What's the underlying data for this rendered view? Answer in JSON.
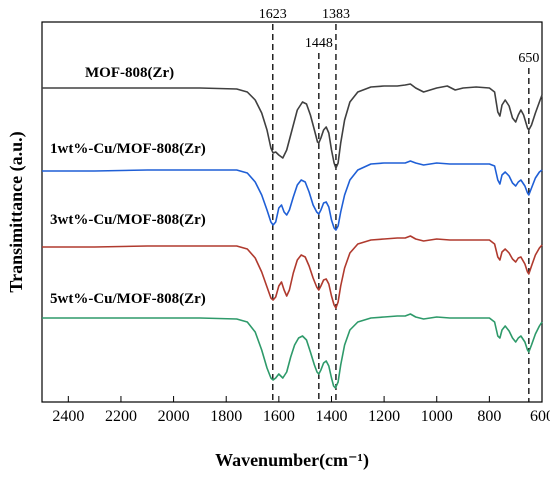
{
  "chart_data": {
    "type": "line",
    "xlabel": "Wavenumber(cm⁻¹)",
    "ylabel": "Transimittance (a.u.)",
    "xlim": [
      2500,
      600
    ],
    "x_reversed": true,
    "xticks": [
      2400,
      2200,
      2000,
      1800,
      1600,
      1400,
      1200,
      1000,
      800,
      600
    ],
    "yticks": "none",
    "grid": false,
    "legend": "none",
    "peak_markers": [
      1623,
      1448,
      1383,
      650
    ],
    "peak_labels": [
      "1623",
      "1448",
      "1383",
      "650"
    ],
    "series": [
      {
        "name": "MOF-808(Zr)",
        "color": "#404040",
        "points": [
          [
            2500,
            88
          ],
          [
            2300,
            88
          ],
          [
            2100,
            88
          ],
          [
            1900,
            88
          ],
          [
            1760,
            89
          ],
          [
            1720,
            92
          ],
          [
            1690,
            100
          ],
          [
            1665,
            113
          ],
          [
            1645,
            130
          ],
          [
            1630,
            148
          ],
          [
            1622,
            153
          ],
          [
            1612,
            152
          ],
          [
            1600,
            155
          ],
          [
            1585,
            158
          ],
          [
            1570,
            150
          ],
          [
            1550,
            130
          ],
          [
            1530,
            110
          ],
          [
            1510,
            102
          ],
          [
            1495,
            104
          ],
          [
            1480,
            115
          ],
          [
            1465,
            130
          ],
          [
            1453,
            142
          ],
          [
            1448,
            143
          ],
          [
            1440,
            138
          ],
          [
            1430,
            130
          ],
          [
            1420,
            127
          ],
          [
            1410,
            133
          ],
          [
            1400,
            150
          ],
          [
            1390,
            163
          ],
          [
            1383,
            168
          ],
          [
            1375,
            163
          ],
          [
            1365,
            143
          ],
          [
            1350,
            120
          ],
          [
            1330,
            102
          ],
          [
            1300,
            92
          ],
          [
            1250,
            87
          ],
          [
            1200,
            86
          ],
          [
            1150,
            86
          ],
          [
            1120,
            85
          ],
          [
            1100,
            84
          ],
          [
            1080,
            88
          ],
          [
            1050,
            92
          ],
          [
            1000,
            88
          ],
          [
            960,
            86
          ],
          [
            930,
            90
          ],
          [
            900,
            88
          ],
          [
            850,
            87
          ],
          [
            800,
            88
          ],
          [
            780,
            92
          ],
          [
            768,
            112
          ],
          [
            760,
            116
          ],
          [
            752,
            105
          ],
          [
            740,
            100
          ],
          [
            725,
            106
          ],
          [
            712,
            118
          ],
          [
            700,
            122
          ],
          [
            690,
            115
          ],
          [
            680,
            110
          ],
          [
            670,
            115
          ],
          [
            655,
            128
          ],
          [
            650,
            130
          ],
          [
            640,
            125
          ],
          [
            625,
            113
          ],
          [
            610,
            102
          ],
          [
            600,
            95
          ]
        ]
      },
      {
        "name": "1wt%-Cu/MOF-808(Zr)",
        "color": "#1f5fd6",
        "points": [
          [
            2500,
            171
          ],
          [
            2300,
            171
          ],
          [
            2100,
            170
          ],
          [
            1900,
            170
          ],
          [
            1760,
            170
          ],
          [
            1720,
            173
          ],
          [
            1690,
            182
          ],
          [
            1665,
            195
          ],
          [
            1645,
            210
          ],
          [
            1630,
            222
          ],
          [
            1622,
            225
          ],
          [
            1612,
            222
          ],
          [
            1600,
            208
          ],
          [
            1590,
            205
          ],
          [
            1580,
            212
          ],
          [
            1570,
            215
          ],
          [
            1560,
            210
          ],
          [
            1545,
            197
          ],
          [
            1530,
            185
          ],
          [
            1515,
            180
          ],
          [
            1500,
            182
          ],
          [
            1485,
            192
          ],
          [
            1470,
            205
          ],
          [
            1456,
            212
          ],
          [
            1448,
            214
          ],
          [
            1440,
            210
          ],
          [
            1430,
            203
          ],
          [
            1420,
            202
          ],
          [
            1410,
            207
          ],
          [
            1400,
            220
          ],
          [
            1390,
            228
          ],
          [
            1383,
            230
          ],
          [
            1375,
            226
          ],
          [
            1365,
            212
          ],
          [
            1350,
            195
          ],
          [
            1330,
            180
          ],
          [
            1300,
            170
          ],
          [
            1250,
            164
          ],
          [
            1200,
            163
          ],
          [
            1150,
            163
          ],
          [
            1120,
            163
          ],
          [
            1100,
            161
          ],
          [
            1080,
            163
          ],
          [
            1050,
            165
          ],
          [
            1000,
            163
          ],
          [
            950,
            164
          ],
          [
            900,
            164
          ],
          [
            850,
            164
          ],
          [
            800,
            164
          ],
          [
            780,
            166
          ],
          [
            768,
            180
          ],
          [
            760,
            184
          ],
          [
            752,
            175
          ],
          [
            740,
            172
          ],
          [
            725,
            176
          ],
          [
            712,
            183
          ],
          [
            700,
            186
          ],
          [
            690,
            182
          ],
          [
            680,
            180
          ],
          [
            665,
            186
          ],
          [
            655,
            193
          ],
          [
            650,
            195
          ],
          [
            640,
            188
          ],
          [
            625,
            178
          ],
          [
            610,
            172
          ],
          [
            600,
            170
          ]
        ]
      },
      {
        "name": "3wt%-Cu/MOF-808(Zr)",
        "color": "#b03a2e",
        "points": [
          [
            2500,
            247
          ],
          [
            2300,
            247
          ],
          [
            2100,
            246
          ],
          [
            1900,
            246
          ],
          [
            1760,
            246
          ],
          [
            1720,
            249
          ],
          [
            1690,
            258
          ],
          [
            1665,
            272
          ],
          [
            1645,
            287
          ],
          [
            1630,
            298
          ],
          [
            1622,
            300
          ],
          [
            1612,
            297
          ],
          [
            1600,
            286
          ],
          [
            1590,
            282
          ],
          [
            1580,
            290
          ],
          [
            1570,
            296
          ],
          [
            1560,
            290
          ],
          [
            1545,
            273
          ],
          [
            1530,
            260
          ],
          [
            1515,
            255
          ],
          [
            1500,
            257
          ],
          [
            1485,
            266
          ],
          [
            1470,
            278
          ],
          [
            1456,
            287
          ],
          [
            1448,
            290
          ],
          [
            1440,
            286
          ],
          [
            1430,
            280
          ],
          [
            1420,
            279
          ],
          [
            1410,
            284
          ],
          [
            1400,
            296
          ],
          [
            1390,
            305
          ],
          [
            1383,
            308
          ],
          [
            1375,
            302
          ],
          [
            1365,
            286
          ],
          [
            1350,
            268
          ],
          [
            1330,
            253
          ],
          [
            1300,
            244
          ],
          [
            1250,
            240
          ],
          [
            1200,
            239
          ],
          [
            1150,
            238
          ],
          [
            1120,
            238
          ],
          [
            1100,
            236
          ],
          [
            1080,
            239
          ],
          [
            1050,
            241
          ],
          [
            1000,
            239
          ],
          [
            950,
            240
          ],
          [
            900,
            240
          ],
          [
            850,
            240
          ],
          [
            800,
            240
          ],
          [
            780,
            244
          ],
          [
            768,
            257
          ],
          [
            760,
            260
          ],
          [
            752,
            252
          ],
          [
            740,
            249
          ],
          [
            725,
            253
          ],
          [
            712,
            259
          ],
          [
            700,
            262
          ],
          [
            690,
            258
          ],
          [
            680,
            257
          ],
          [
            665,
            264
          ],
          [
            655,
            272
          ],
          [
            650,
            274
          ],
          [
            640,
            266
          ],
          [
            625,
            255
          ],
          [
            610,
            248
          ],
          [
            600,
            245
          ]
        ]
      },
      {
        "name": "5wt%-Cu/MOF-808(Zr)",
        "color": "#2e9a6a",
        "points": [
          [
            2500,
            318
          ],
          [
            2300,
            318
          ],
          [
            2100,
            318
          ],
          [
            1900,
            318
          ],
          [
            1760,
            319
          ],
          [
            1720,
            322
          ],
          [
            1690,
            332
          ],
          [
            1665,
            350
          ],
          [
            1645,
            368
          ],
          [
            1630,
            378
          ],
          [
            1622,
            380
          ],
          [
            1612,
            378
          ],
          [
            1600,
            374
          ],
          [
            1585,
            378
          ],
          [
            1570,
            372
          ],
          [
            1555,
            357
          ],
          [
            1540,
            345
          ],
          [
            1525,
            338
          ],
          [
            1510,
            336
          ],
          [
            1495,
            340
          ],
          [
            1480,
            352
          ],
          [
            1465,
            365
          ],
          [
            1455,
            372
          ],
          [
            1448,
            374
          ],
          [
            1440,
            370
          ],
          [
            1430,
            363
          ],
          [
            1420,
            361
          ],
          [
            1410,
            366
          ],
          [
            1400,
            378
          ],
          [
            1392,
            386
          ],
          [
            1385,
            388
          ],
          [
            1375,
            382
          ],
          [
            1365,
            365
          ],
          [
            1350,
            345
          ],
          [
            1330,
            330
          ],
          [
            1300,
            322
          ],
          [
            1250,
            318
          ],
          [
            1200,
            317
          ],
          [
            1150,
            316
          ],
          [
            1120,
            316
          ],
          [
            1100,
            314
          ],
          [
            1080,
            317
          ],
          [
            1050,
            319
          ],
          [
            1000,
            317
          ],
          [
            950,
            318
          ],
          [
            900,
            318
          ],
          [
            850,
            318
          ],
          [
            800,
            318
          ],
          [
            780,
            322
          ],
          [
            768,
            336
          ],
          [
            760,
            338
          ],
          [
            752,
            330
          ],
          [
            740,
            326
          ],
          [
            725,
            331
          ],
          [
            712,
            338
          ],
          [
            700,
            342
          ],
          [
            690,
            338
          ],
          [
            680,
            336
          ],
          [
            665,
            342
          ],
          [
            655,
            350
          ],
          [
            650,
            352
          ],
          [
            640,
            345
          ],
          [
            625,
            334
          ],
          [
            610,
            326
          ],
          [
            600,
            322
          ]
        ]
      }
    ]
  }
}
